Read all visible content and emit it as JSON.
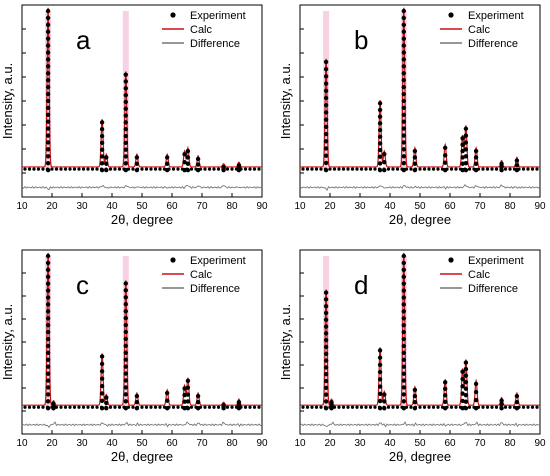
{
  "chart_data": [
    {
      "type": "line",
      "panel_label": "a",
      "xlabel": "2θ, degree",
      "ylabel": "Intensity, a.u.",
      "xlim": [
        10,
        90
      ],
      "x_ticks": [
        "10",
        "20",
        "30",
        "40",
        "50",
        "60",
        "70",
        "80",
        "90"
      ],
      "legend": {
        "position": "top-right",
        "entries": [
          "Experiment",
          "Calc",
          "Difference"
        ]
      },
      "grid": false,
      "series": [
        {
          "name": "Experiment",
          "style": "black dots"
        },
        {
          "name": "Calc",
          "style": "red line"
        },
        {
          "name": "Difference",
          "style": "grey line"
        }
      ],
      "peaks": [
        {
          "two_theta": 18.7,
          "intensity": 1.0
        },
        {
          "two_theta": 36.7,
          "intensity": 0.3
        },
        {
          "two_theta": 38.1,
          "intensity": 0.08
        },
        {
          "two_theta": 44.6,
          "intensity": 0.6
        },
        {
          "two_theta": 48.3,
          "intensity": 0.08
        },
        {
          "two_theta": 58.4,
          "intensity": 0.08
        },
        {
          "two_theta": 64.2,
          "intensity": 0.1
        },
        {
          "two_theta": 65.3,
          "intensity": 0.12
        },
        {
          "two_theta": 68.7,
          "intensity": 0.07
        },
        {
          "two_theta": 77.2,
          "intensity": 0.02
        },
        {
          "two_theta": 82.3,
          "intensity": 0.03
        }
      ]
    },
    {
      "type": "line",
      "panel_label": "b",
      "xlabel": "2θ, degree",
      "ylabel": "Intensity, a.u.",
      "xlim": [
        10,
        90
      ],
      "x_ticks": [
        "10",
        "20",
        "30",
        "40",
        "50",
        "60",
        "70",
        "80",
        "90"
      ],
      "legend": {
        "position": "top-right",
        "entries": [
          "Experiment",
          "Calc",
          "Difference"
        ]
      },
      "grid": false,
      "series": [
        {
          "name": "Experiment",
          "style": "black dots"
        },
        {
          "name": "Calc",
          "style": "red line"
        },
        {
          "name": "Difference",
          "style": "grey line"
        }
      ],
      "peaks": [
        {
          "two_theta": 18.7,
          "intensity": 0.68
        },
        {
          "two_theta": 36.7,
          "intensity": 0.42
        },
        {
          "two_theta": 38.1,
          "intensity": 0.1
        },
        {
          "two_theta": 44.6,
          "intensity": 1.0
        },
        {
          "two_theta": 48.3,
          "intensity": 0.12
        },
        {
          "two_theta": 58.4,
          "intensity": 0.14
        },
        {
          "two_theta": 64.2,
          "intensity": 0.2
        },
        {
          "two_theta": 65.3,
          "intensity": 0.26
        },
        {
          "two_theta": 68.7,
          "intensity": 0.12
        },
        {
          "two_theta": 77.2,
          "intensity": 0.04
        },
        {
          "two_theta": 82.3,
          "intensity": 0.06
        }
      ]
    },
    {
      "type": "line",
      "panel_label": "c",
      "xlabel": "2θ, degree",
      "ylabel": "Intensity, a.u.",
      "xlim": [
        10,
        90
      ],
      "x_ticks": [
        "10",
        "20",
        "30",
        "40",
        "50",
        "60",
        "70",
        "80",
        "90"
      ],
      "legend": {
        "position": "top-right",
        "entries": [
          "Experiment",
          "Calc",
          "Difference"
        ]
      },
      "grid": false,
      "series": [
        {
          "name": "Experiment",
          "style": "black dots"
        },
        {
          "name": "Calc",
          "style": "red line"
        },
        {
          "name": "Difference",
          "style": "grey line"
        }
      ],
      "peaks": [
        {
          "two_theta": 18.7,
          "intensity": 1.0
        },
        {
          "two_theta": 20.5,
          "intensity": 0.03
        },
        {
          "two_theta": 36.7,
          "intensity": 0.34
        },
        {
          "two_theta": 38.1,
          "intensity": 0.07
        },
        {
          "two_theta": 44.6,
          "intensity": 0.82
        },
        {
          "two_theta": 48.3,
          "intensity": 0.08
        },
        {
          "two_theta": 58.4,
          "intensity": 0.1
        },
        {
          "two_theta": 64.2,
          "intensity": 0.13
        },
        {
          "two_theta": 65.3,
          "intensity": 0.18
        },
        {
          "two_theta": 68.7,
          "intensity": 0.08
        },
        {
          "two_theta": 77.2,
          "intensity": 0.02
        },
        {
          "two_theta": 82.3,
          "intensity": 0.04
        }
      ]
    },
    {
      "type": "line",
      "panel_label": "d",
      "xlabel": "2θ, degree",
      "ylabel": "Intensity, a.u.",
      "xlim": [
        10,
        90
      ],
      "x_ticks": [
        "10",
        "20",
        "30",
        "40",
        "50",
        "60",
        "70",
        "80",
        "90"
      ],
      "legend": {
        "position": "top-right",
        "entries": [
          "Experiment",
          "Calc",
          "Difference"
        ]
      },
      "grid": false,
      "series": [
        {
          "name": "Experiment",
          "style": "black dots"
        },
        {
          "name": "Calc",
          "style": "red line"
        },
        {
          "name": "Difference",
          "style": "grey line"
        }
      ],
      "peaks": [
        {
          "two_theta": 18.7,
          "intensity": 0.76
        },
        {
          "two_theta": 20.5,
          "intensity": 0.04
        },
        {
          "two_theta": 36.7,
          "intensity": 0.38
        },
        {
          "two_theta": 38.1,
          "intensity": 0.09
        },
        {
          "two_theta": 44.6,
          "intensity": 1.0
        },
        {
          "two_theta": 48.3,
          "intensity": 0.12
        },
        {
          "two_theta": 58.4,
          "intensity": 0.17
        },
        {
          "two_theta": 64.2,
          "intensity": 0.24
        },
        {
          "two_theta": 65.3,
          "intensity": 0.3
        },
        {
          "two_theta": 68.7,
          "intensity": 0.16
        },
        {
          "two_theta": 77.2,
          "intensity": 0.05
        },
        {
          "two_theta": 82.3,
          "intensity": 0.08
        }
      ]
    }
  ],
  "colors": {
    "experiment": "#000000",
    "calc": "#cc1111",
    "difference": "#777777",
    "highlight": "#e35c9c"
  }
}
